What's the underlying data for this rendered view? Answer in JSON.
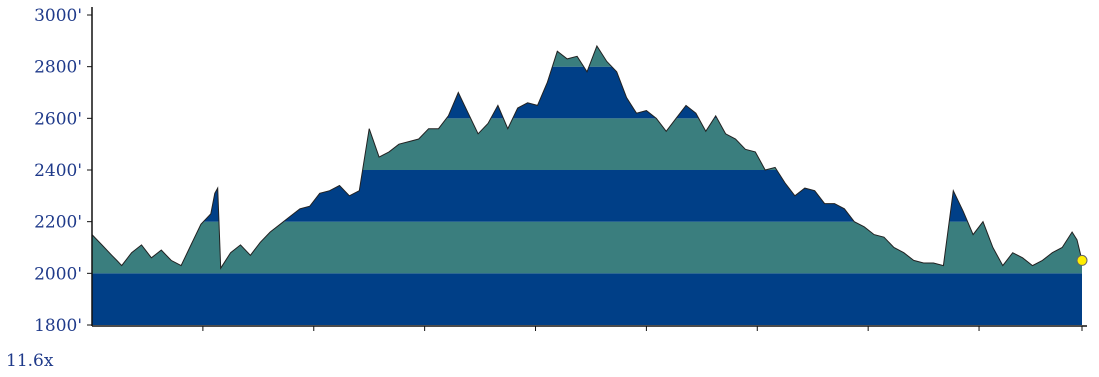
{
  "zoom_label": "11.6x",
  "colors": {
    "band_dark": "#003f87",
    "band_teal": "#3a7e7e",
    "outline": "#222222",
    "axis": "#111111",
    "tick_text": "#1f3a8a",
    "marker_fill": "#ffee00",
    "marker_stroke": "#666666"
  },
  "chart_data": {
    "type": "area",
    "title": "",
    "xlabel": "",
    "ylabel": "",
    "ylim": [
      1800,
      3000
    ],
    "xlim": [
      0,
      100
    ],
    "y_ticks": [
      {
        "value": 1800,
        "label": "1800'"
      },
      {
        "value": 2000,
        "label": "2000'"
      },
      {
        "value": 2200,
        "label": "2200'"
      },
      {
        "value": 2400,
        "label": "2400'"
      },
      {
        "value": 2600,
        "label": "2600'"
      },
      {
        "value": 2800,
        "label": "2800'"
      },
      {
        "value": 3000,
        "label": "3000'"
      }
    ],
    "x_ticks": [
      11.2,
      22.4,
      33.6,
      44.8,
      56.0,
      67.2,
      78.4,
      89.6,
      100
    ],
    "band_fill": "alternating 200' bands: dark blue / teal",
    "series": [
      {
        "x": [
          0,
          1,
          2,
          2.5,
          3,
          4,
          5,
          6,
          7,
          8,
          9,
          10,
          11,
          12,
          12.4,
          12.7,
          13,
          14,
          15,
          16,
          17,
          18,
          19,
          20,
          21,
          22,
          23,
          24,
          25,
          26,
          27,
          28,
          29,
          30,
          31,
          32,
          33,
          34,
          35,
          36,
          37,
          38,
          39,
          40,
          41,
          42,
          43,
          44,
          45,
          46,
          47,
          48,
          49,
          50,
          51,
          52,
          53,
          54,
          55,
          56,
          57,
          58,
          59,
          60,
          61,
          62,
          63,
          64,
          65,
          66,
          67,
          68,
          69,
          70,
          71,
          72,
          73,
          74,
          75,
          76,
          77,
          78,
          79,
          80,
          81,
          82,
          83,
          84,
          85,
          86,
          87,
          88,
          89,
          90,
          91,
          92,
          93,
          94,
          95,
          96,
          97,
          98,
          99,
          99.5,
          100
        ],
        "y": [
          2150,
          2110,
          2070,
          2050,
          2030,
          2080,
          2110,
          2060,
          2090,
          2050,
          2030,
          2110,
          2190,
          2230,
          2310,
          2330,
          2020,
          2080,
          2110,
          2070,
          2120,
          2160,
          2190,
          2220,
          2250,
          2260,
          2310,
          2320,
          2340,
          2300,
          2320,
          2560,
          2450,
          2470,
          2500,
          2510,
          2520,
          2560,
          2560,
          2610,
          2700,
          2620,
          2540,
          2580,
          2650,
          2560,
          2640,
          2660,
          2650,
          2740,
          2860,
          2830,
          2840,
          2780,
          2880,
          2820,
          2780,
          2680,
          2620,
          2630,
          2600,
          2550,
          2600,
          2650,
          2620,
          2550,
          2610,
          2540,
          2520,
          2480,
          2470,
          2400,
          2410,
          2350,
          2300,
          2330,
          2320,
          2270,
          2270,
          2250,
          2200,
          2180,
          2150,
          2140,
          2100,
          2080,
          2050,
          2040,
          2040,
          2030,
          2320,
          2240,
          2150,
          2200,
          2100,
          2030,
          2080,
          2060,
          2030,
          2050,
          2080,
          2100,
          2160,
          2130,
          2050
        ]
      }
    ],
    "marker": {
      "x": 100,
      "y": 2050
    }
  }
}
